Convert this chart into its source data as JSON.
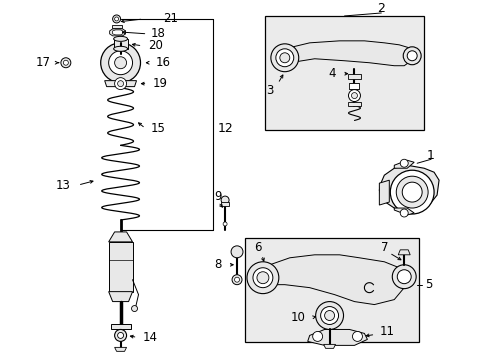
{
  "bg_color": "#ffffff",
  "line_color": "#000000",
  "gray_fill": "#c8c8c8",
  "light_gray": "#e8e8e8",
  "box_fill": "#ebebeb",
  "fig_w": 4.89,
  "fig_h": 3.6,
  "dpi": 100
}
